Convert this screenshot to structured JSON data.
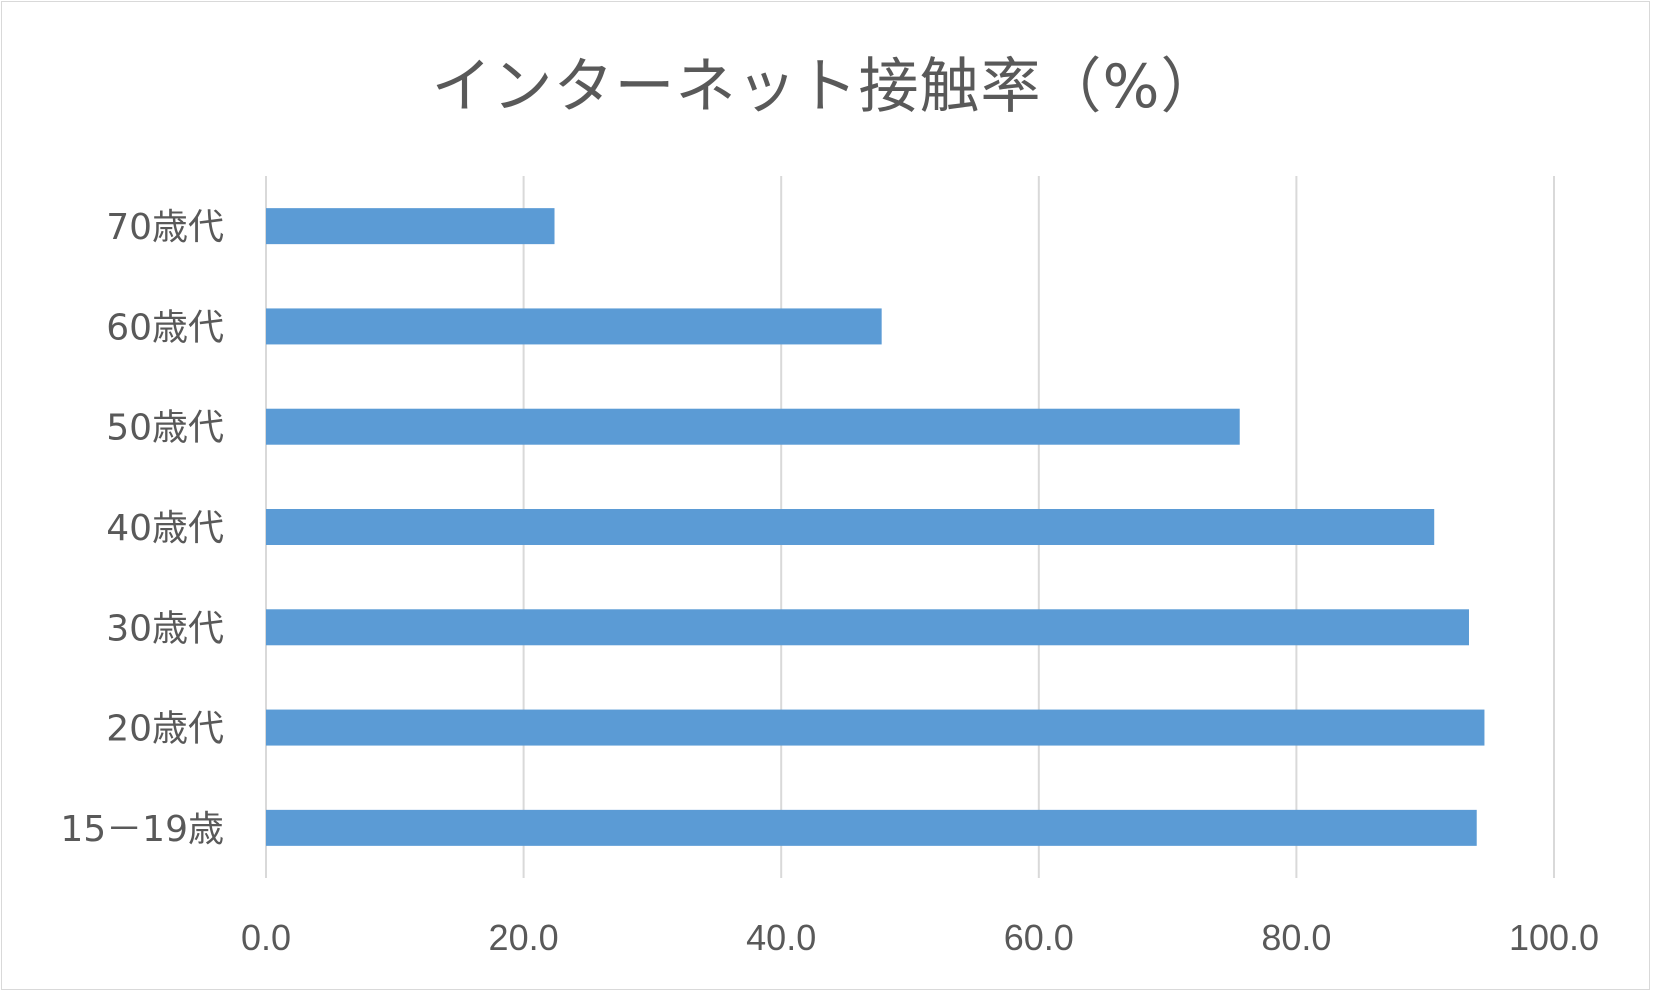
{
  "chart_data": {
    "type": "bar",
    "orientation": "horizontal",
    "title": "インターネット接触率（%）",
    "categories": [
      "70歳代",
      "60歳代",
      "50歳代",
      "40歳代",
      "30歳代",
      "20歳代",
      "15－19歳"
    ],
    "values": [
      22.4,
      47.8,
      75.6,
      90.7,
      93.4,
      94.6,
      94.0
    ],
    "xlim": [
      0,
      100
    ],
    "x_ticks": [
      "0.0",
      "20.0",
      "40.0",
      "60.0",
      "80.0",
      "100.0"
    ],
    "bar_color": "#5b9bd5",
    "grid": true,
    "legend": "none"
  }
}
